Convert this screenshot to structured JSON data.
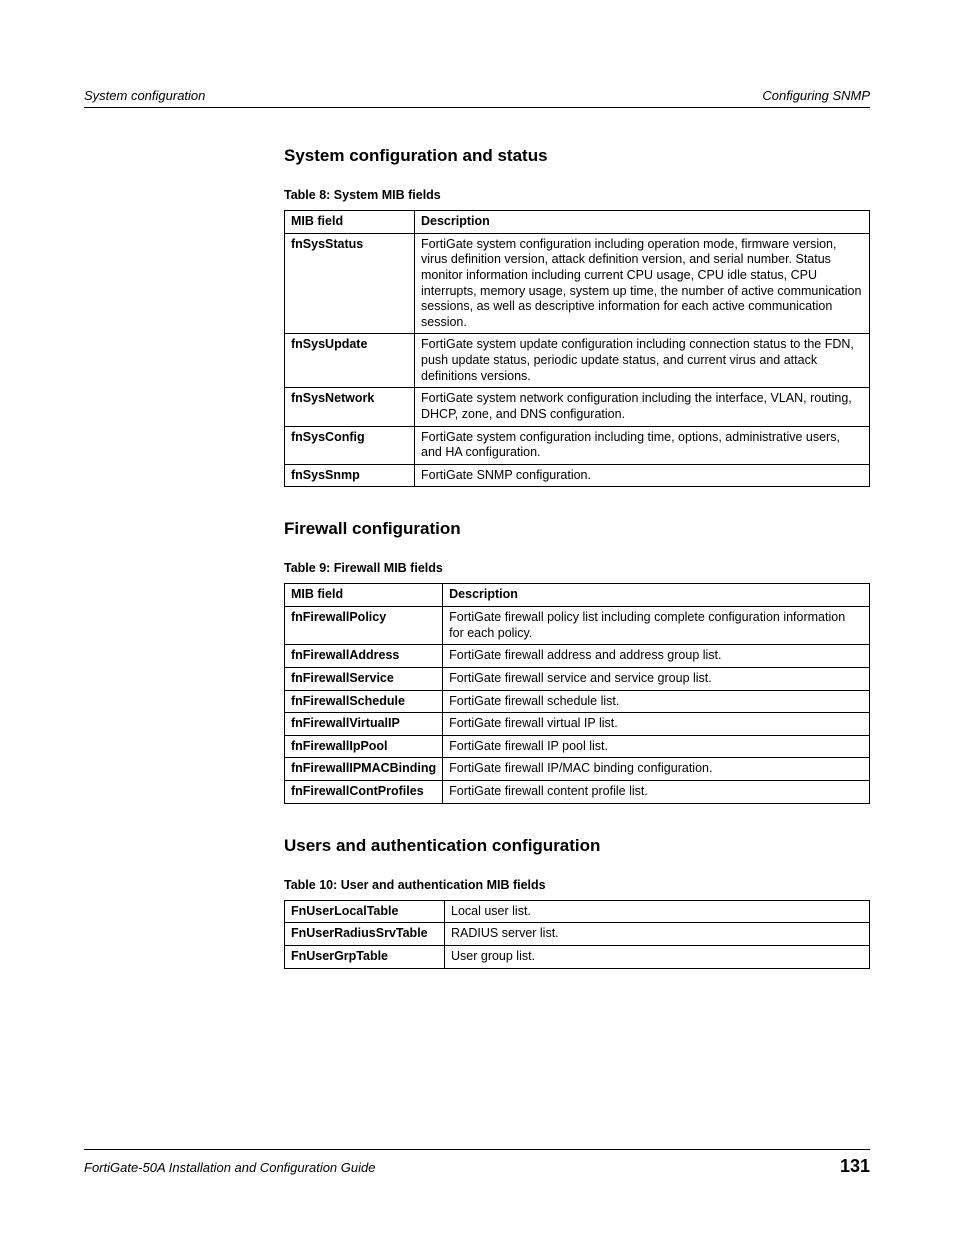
{
  "header": {
    "left": "System configuration",
    "right": "Configuring SNMP"
  },
  "sections": [
    {
      "heading": "System configuration and status",
      "caption": "Table 8: System MIB fields",
      "col1Class": "col1",
      "headers": [
        "MIB field",
        "Description"
      ],
      "rows": [
        [
          "fnSysStatus",
          "FortiGate system configuration including operation mode, firmware version, virus definition version, attack definition version, and serial number. Status monitor information including current CPU usage, CPU idle status, CPU interrupts, memory usage, system up time, the number of active communication sessions, as well as descriptive information for each active communication session."
        ],
        [
          "fnSysUpdate",
          "FortiGate system update configuration including connection status to the FDN, push update status, periodic update status, and current virus and attack definitions versions."
        ],
        [
          "fnSysNetwork",
          "FortiGate system network configuration including the interface, VLAN, routing, DHCP, zone, and DNS configuration."
        ],
        [
          "fnSysConfig",
          "FortiGate system configuration including time, options, administrative users, and HA configuration."
        ],
        [
          "fnSysSnmp",
          "FortiGate SNMP configuration."
        ]
      ]
    },
    {
      "heading": "Firewall configuration",
      "caption": "Table 9: Firewall MIB fields",
      "col1Class": "col1-wide",
      "headers": [
        "MIB field",
        "Description"
      ],
      "rows": [
        [
          "fnFirewallPolicy",
          "FortiGate firewall policy list including complete configuration information for each policy."
        ],
        [
          "fnFirewallAddress",
          "FortiGate firewall address and address group list."
        ],
        [
          "fnFirewallService",
          "FortiGate firewall service and service group list."
        ],
        [
          "fnFirewallSchedule",
          "FortiGate firewall schedule list."
        ],
        [
          "fnFirewallVirtualIP",
          "FortiGate firewall virtual IP list."
        ],
        [
          "fnFirewallIpPool",
          "FortiGate firewall IP pool list."
        ],
        [
          "fnFirewallIPMACBinding",
          "FortiGate firewall IP/MAC binding configuration."
        ],
        [
          "fnFirewallContProfiles",
          "FortiGate firewall content profile list."
        ]
      ]
    },
    {
      "heading": "Users and authentication configuration",
      "caption": "Table 10: User and authentication MIB fields",
      "col1Class": "col1-user",
      "headers": null,
      "rows": [
        [
          "FnUserLocalTable",
          "Local user list."
        ],
        [
          "FnUserRadiusSrvTable",
          "RADIUS server list."
        ],
        [
          "FnUserGrpTable",
          "User group list."
        ]
      ]
    }
  ],
  "footer": {
    "left": "FortiGate-50A Installation and Configuration Guide",
    "page": "131"
  }
}
